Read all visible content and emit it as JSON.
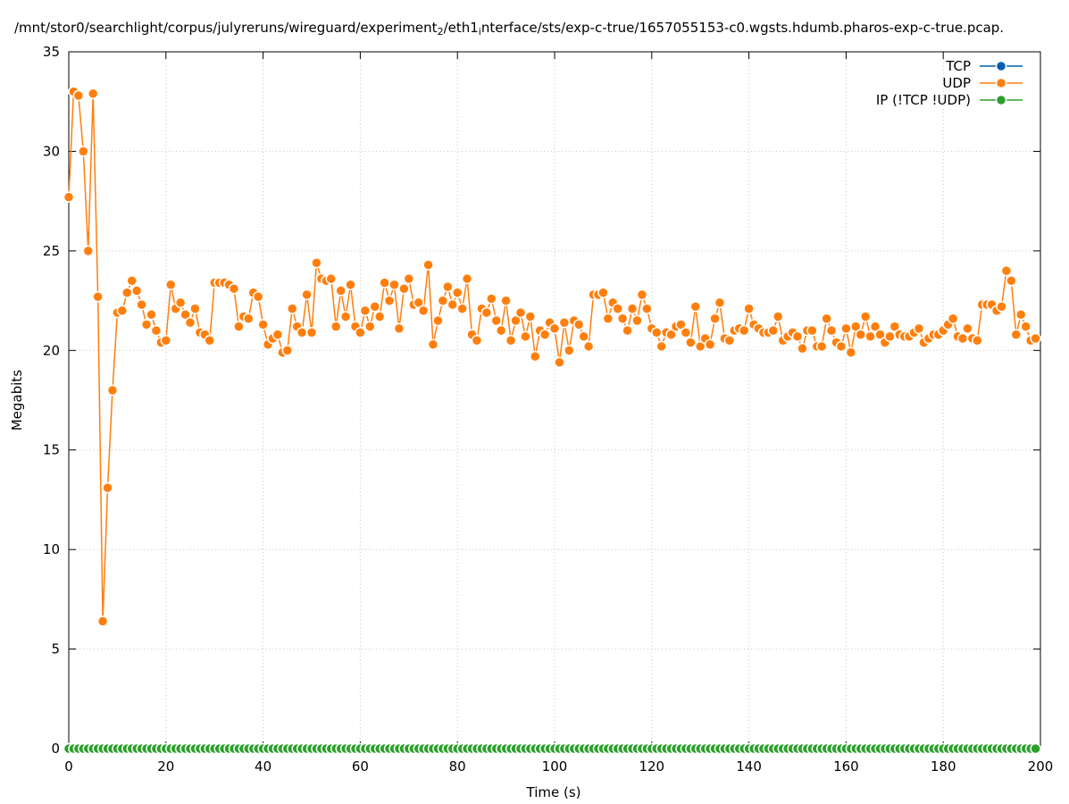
{
  "chart_data": {
    "type": "line",
    "title_parts": [
      "/mnt/stor0/searchlight/corpus/julyreruns/wireguard/experiment",
      "2",
      "/eth1",
      "i",
      "nterface/sts/exp-c-true/1657055153-c0.wgsts.hdumb.pharos-exp-c-true.pcap."
    ],
    "xlabel": "Time (s)",
    "ylabel": "Megabits",
    "xlim": [
      0,
      200
    ],
    "ylim": [
      0,
      35
    ],
    "xticks": [
      0,
      20,
      40,
      60,
      80,
      100,
      120,
      140,
      160,
      180,
      200
    ],
    "yticks": [
      0,
      5,
      10,
      15,
      20,
      25,
      30,
      35
    ],
    "grid": true,
    "legend": "top-right",
    "x": [
      0,
      1,
      2,
      3,
      4,
      5,
      6,
      7,
      8,
      9,
      10,
      11,
      12,
      13,
      14,
      15,
      16,
      17,
      18,
      19,
      20,
      21,
      22,
      23,
      24,
      25,
      26,
      27,
      28,
      29,
      30,
      31,
      32,
      33,
      34,
      35,
      36,
      37,
      38,
      39,
      40,
      41,
      42,
      43,
      44,
      45,
      46,
      47,
      48,
      49,
      50,
      51,
      52,
      53,
      54,
      55,
      56,
      57,
      58,
      59,
      60,
      61,
      62,
      63,
      64,
      65,
      66,
      67,
      68,
      69,
      70,
      71,
      72,
      73,
      74,
      75,
      76,
      77,
      78,
      79,
      80,
      81,
      82,
      83,
      84,
      85,
      86,
      87,
      88,
      89,
      90,
      91,
      92,
      93,
      94,
      95,
      96,
      97,
      98,
      99,
      100,
      101,
      102,
      103,
      104,
      105,
      106,
      107,
      108,
      109,
      110,
      111,
      112,
      113,
      114,
      115,
      116,
      117,
      118,
      119,
      120,
      121,
      122,
      123,
      124,
      125,
      126,
      127,
      128,
      129,
      130,
      131,
      132,
      133,
      134,
      135,
      136,
      137,
      138,
      139,
      140,
      141,
      142,
      143,
      144,
      145,
      146,
      147,
      148,
      149,
      150,
      151,
      152,
      153,
      154,
      155,
      156,
      157,
      158,
      159,
      160,
      161,
      162,
      163,
      164,
      165,
      166,
      167,
      168,
      169,
      170,
      171,
      172,
      173,
      174,
      175,
      176,
      177,
      178,
      179,
      180,
      181,
      182,
      183,
      184,
      185,
      186,
      187,
      188,
      189,
      190,
      191,
      192,
      193,
      194,
      195,
      196,
      197,
      198,
      199
    ],
    "series": [
      {
        "name": "TCP",
        "color": "#0060ad",
        "values": [
          0,
          0,
          0,
          0,
          0,
          0,
          0,
          0,
          0,
          0,
          0,
          0,
          0,
          0,
          0,
          0,
          0,
          0,
          0,
          0,
          0,
          0,
          0,
          0,
          0,
          0,
          0,
          0,
          0,
          0,
          0,
          0,
          0,
          0,
          0,
          0,
          0,
          0,
          0,
          0,
          0,
          0,
          0,
          0,
          0,
          0,
          0,
          0,
          0,
          0,
          0,
          0,
          0,
          0,
          0,
          0,
          0,
          0,
          0,
          0,
          0,
          0,
          0,
          0,
          0,
          0,
          0,
          0,
          0,
          0,
          0,
          0,
          0,
          0,
          0,
          0,
          0,
          0,
          0,
          0,
          0,
          0,
          0,
          0,
          0,
          0,
          0,
          0,
          0,
          0,
          0,
          0,
          0,
          0,
          0,
          0,
          0,
          0,
          0,
          0,
          0,
          0,
          0,
          0,
          0,
          0,
          0,
          0,
          0,
          0,
          0,
          0,
          0,
          0,
          0,
          0,
          0,
          0,
          0,
          0,
          0,
          0,
          0,
          0,
          0,
          0,
          0,
          0,
          0,
          0,
          0,
          0,
          0,
          0,
          0,
          0,
          0,
          0,
          0,
          0,
          0,
          0,
          0,
          0,
          0,
          0,
          0,
          0,
          0,
          0,
          0,
          0,
          0,
          0,
          0,
          0,
          0,
          0,
          0,
          0,
          0,
          0,
          0,
          0,
          0,
          0,
          0,
          0,
          0,
          0,
          0,
          0,
          0,
          0,
          0,
          0,
          0,
          0,
          0,
          0,
          0,
          0,
          0,
          0,
          0,
          0,
          0,
          0,
          0,
          0,
          0,
          0,
          0,
          0,
          0,
          0,
          0,
          0,
          0,
          0
        ]
      },
      {
        "name": "UDP",
        "color": "#ff7f0e",
        "values": [
          27.7,
          33.0,
          32.8,
          30.0,
          25.0,
          32.9,
          22.7,
          6.4,
          13.1,
          18.0,
          21.9,
          22.0,
          22.9,
          23.5,
          23.0,
          22.3,
          21.3,
          21.8,
          21.0,
          20.4,
          20.5,
          23.3,
          22.1,
          22.4,
          21.8,
          21.4,
          22.1,
          20.9,
          20.8,
          20.5,
          23.4,
          23.4,
          23.4,
          23.3,
          23.1,
          21.2,
          21.7,
          21.6,
          22.9,
          22.7,
          21.3,
          20.3,
          20.6,
          20.8,
          19.9,
          20.0,
          22.1,
          21.2,
          20.9,
          22.8,
          20.9,
          24.4,
          23.6,
          23.5,
          23.6,
          21.2,
          23.0,
          21.7,
          23.3,
          21.2,
          20.9,
          22.0,
          21.2,
          22.2,
          21.7,
          23.4,
          22.5,
          23.3,
          21.1,
          23.1,
          23.6,
          22.3,
          22.4,
          22.0,
          24.3,
          20.3,
          21.5,
          22.5,
          23.2,
          22.3,
          22.9,
          22.1,
          23.6,
          20.8,
          20.5,
          22.1,
          21.9,
          22.6,
          21.5,
          21.0,
          22.5,
          20.5,
          21.5,
          21.9,
          20.7,
          21.7,
          19.7,
          21.0,
          20.8,
          21.4,
          21.1,
          19.4,
          21.4,
          20.0,
          21.5,
          21.3,
          20.7,
          20.2,
          22.8,
          22.8,
          22.9,
          21.6,
          22.4,
          22.1,
          21.6,
          21.0,
          22.1,
          21.5,
          22.8,
          22.1,
          21.1,
          20.9,
          20.2,
          20.9,
          20.8,
          21.2,
          21.3,
          20.9,
          20.4,
          22.2,
          20.2,
          20.6,
          20.3,
          21.6,
          22.4,
          20.6,
          20.5,
          21.0,
          21.1,
          21.0,
          22.1,
          21.3,
          21.1,
          20.9,
          20.9,
          21.0,
          21.7,
          20.5,
          20.7,
          20.9,
          20.7,
          20.1,
          21.0,
          21.0,
          20.2,
          20.2,
          21.6,
          21.0,
          20.4,
          20.2,
          21.1,
          19.9,
          21.2,
          20.8,
          21.7,
          20.7,
          21.2,
          20.8,
          20.4,
          20.7,
          21.2,
          20.8,
          20.7,
          20.7,
          20.9,
          21.1,
          20.4,
          20.6,
          20.8,
          20.8,
          21.0,
          21.3,
          21.6,
          20.7,
          20.6,
          21.1,
          20.6,
          20.5,
          22.3,
          22.3,
          22.3,
          22.0,
          22.2,
          24.0,
          23.5,
          20.8,
          21.8,
          21.2,
          20.5,
          20.6
        ]
      },
      {
        "name": "IP (!TCP  !UDP)",
        "color": "#2ca02c",
        "values": [
          0,
          0,
          0,
          0,
          0,
          0,
          0,
          0,
          0,
          0,
          0,
          0,
          0,
          0,
          0,
          0,
          0,
          0,
          0,
          0,
          0,
          0,
          0,
          0,
          0,
          0,
          0,
          0,
          0,
          0,
          0,
          0,
          0,
          0,
          0,
          0,
          0,
          0,
          0,
          0,
          0,
          0,
          0,
          0,
          0,
          0,
          0,
          0,
          0,
          0,
          0,
          0,
          0,
          0,
          0,
          0,
          0,
          0,
          0,
          0,
          0,
          0,
          0,
          0,
          0,
          0,
          0,
          0,
          0,
          0,
          0,
          0,
          0,
          0,
          0,
          0,
          0,
          0,
          0,
          0,
          0,
          0,
          0,
          0,
          0,
          0,
          0,
          0,
          0,
          0,
          0,
          0,
          0,
          0,
          0,
          0,
          0,
          0,
          0,
          0,
          0,
          0,
          0,
          0,
          0,
          0,
          0,
          0,
          0,
          0,
          0,
          0,
          0,
          0,
          0,
          0,
          0,
          0,
          0,
          0,
          0,
          0,
          0,
          0,
          0,
          0,
          0,
          0,
          0,
          0,
          0,
          0,
          0,
          0,
          0,
          0,
          0,
          0,
          0,
          0,
          0,
          0,
          0,
          0,
          0,
          0,
          0,
          0,
          0,
          0,
          0,
          0,
          0,
          0,
          0,
          0,
          0,
          0,
          0,
          0,
          0,
          0,
          0,
          0,
          0,
          0,
          0,
          0,
          0,
          0,
          0,
          0,
          0,
          0,
          0,
          0,
          0,
          0,
          0,
          0,
          0,
          0,
          0,
          0,
          0,
          0,
          0,
          0,
          0,
          0,
          0,
          0,
          0,
          0,
          0,
          0,
          0,
          0,
          0,
          0
        ]
      }
    ]
  }
}
